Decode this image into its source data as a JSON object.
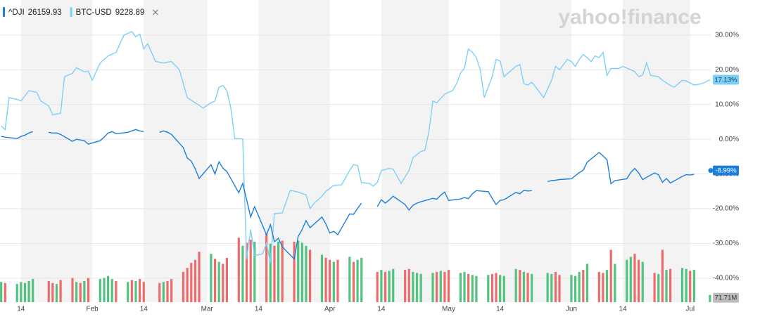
{
  "chart_data": {
    "type": "line",
    "logo": "yahoo!finance",
    "xlim": [
      8.7,
      188.2
    ],
    "ylim": [
      -46.9,
      40.1
    ],
    "grid": true,
    "xticks": [
      14,
      {
        "value": 32,
        "label": "Feb"
      },
      {
        "value": 45,
        "label": "14"
      },
      {
        "value": 61,
        "label": "Mar"
      },
      {
        "value": 74,
        "label": "14"
      },
      {
        "value": 92,
        "label": "Apr"
      },
      {
        "value": 105,
        "label": "14"
      },
      {
        "value": 122,
        "label": "May"
      },
      {
        "value": 135,
        "label": "14"
      },
      {
        "value": 153,
        "label": "Jun"
      },
      {
        "value": 166,
        "label": "14"
      },
      {
        "value": 183,
        "label": "Jul"
      }
    ],
    "yticks": [
      {
        "value": 30,
        "label": "30.00%"
      },
      {
        "value": 20,
        "label": "20.00%"
      },
      {
        "value": 10,
        "label": "10.00%"
      },
      {
        "value": 0,
        "label": "0.00%"
      },
      {
        "value": -10,
        "label": "-10.00%"
      },
      {
        "value": -20,
        "label": "-20.00%"
      },
      {
        "value": -30,
        "label": "-30.00%"
      },
      {
        "value": -40,
        "label": "-40.00%"
      }
    ],
    "series": [
      {
        "name": "^DJI",
        "price": 26159.93,
        "color": "#1c7fdc",
        "last_label": "-8.99%",
        "x": [
          9,
          10,
          13,
          14,
          15,
          16,
          17,
          20,
          21,
          22,
          23,
          24,
          27,
          28,
          29,
          30,
          31,
          34,
          35,
          36,
          37,
          38,
          41,
          42,
          43,
          44,
          45,
          48,
          49,
          50,
          51,
          52,
          55,
          56,
          57,
          58,
          59,
          62,
          63,
          64,
          65,
          66,
          69,
          70,
          71,
          72,
          73,
          76,
          77,
          78,
          79,
          80,
          83,
          84,
          85,
          86,
          87,
          90,
          91,
          92,
          93,
          94,
          97,
          98,
          99,
          100,
          101,
          104,
          105,
          106,
          107,
          108,
          111,
          112,
          113,
          114,
          115,
          118,
          119,
          120,
          121,
          122,
          125,
          126,
          127,
          128,
          129,
          132,
          133,
          134,
          135,
          136,
          139,
          140,
          141,
          142,
          143,
          146,
          147,
          148,
          149,
          150,
          153,
          154,
          155,
          156,
          157,
          160,
          161,
          162,
          163,
          164,
          167,
          168,
          169,
          170,
          171,
          174,
          175,
          176,
          177,
          178,
          181,
          182,
          183,
          184,
          185,
          188
        ],
        "values": [
          0.8,
          0.6,
          0.2,
          0.8,
          1.2,
          1.8,
          2.2,
          null,
          2.0,
          1.8,
          1.8,
          1.4,
          -0.6,
          0,
          -0.2,
          -0.4,
          -1.4,
          -0.4,
          0.6,
          1.8,
          2.2,
          1.6,
          2.0,
          2.4,
          2.8,
          2.4,
          2.2,
          null,
          2.0,
          2.4,
          2.0,
          1.4,
          -2.4,
          -5.4,
          -6.3,
          -8.5,
          -11.3,
          -7.3,
          -10,
          -6.5,
          -8.3,
          -9.3,
          -15.4,
          -12.7,
          -17.4,
          -22.4,
          -19.4,
          -27.5,
          -24.6,
          -29.5,
          -28.5,
          -31,
          -34.5,
          -28,
          -26,
          -23.4,
          -25.5,
          -22.4,
          -24.4,
          -27,
          -26.5,
          -27.5,
          -21.5,
          -21.6,
          -19.9,
          -18.4,
          null,
          -19.4,
          -17.4,
          -18.4,
          -17.5,
          -16.4,
          -18.8,
          -20.4,
          -19,
          -18.4,
          -18,
          -17,
          -17.3,
          -16.1,
          -15.2,
          -17.6,
          -17.2,
          -16.8,
          -17.1,
          -15.7,
          -14.8,
          -15.1,
          -17,
          -18.8,
          -17.6,
          -17.4,
          -15.3,
          -15.7,
          -14.7,
          -14.9,
          -14.8,
          null,
          -12.2,
          -11.9,
          -11.8,
          -11.6,
          -11.4,
          -10.5,
          -9.6,
          -8.9,
          -6.6,
          -3.8,
          -4.8,
          -5.9,
          -12.8,
          -11.9,
          -11.4,
          -9.6,
          -8.4,
          -9.7,
          -11.6,
          -9.7,
          -10.2,
          -12.4,
          -11.3,
          -12.6,
          -10.7,
          -10.2,
          -10.3,
          -10.1,
          null,
          -8.99
        ]
      },
      {
        "name": "BTC-USD",
        "price": 9228.89,
        "color": "#7dd0f5",
        "last_label": "17.13%",
        "x": [
          9,
          10,
          11,
          13,
          14,
          16,
          18,
          19,
          21,
          22,
          24,
          25,
          27,
          28,
          30,
          31,
          32,
          34,
          36,
          38,
          40,
          42,
          43,
          44,
          45,
          46,
          48,
          50,
          52,
          54,
          55,
          56,
          58,
          60,
          62,
          63,
          64,
          65,
          66,
          67,
          68,
          70,
          71,
          72,
          73,
          75,
          76,
          77,
          78,
          80,
          82,
          84,
          86,
          87,
          88,
          90,
          91,
          93,
          95,
          97,
          98,
          99,
          100,
          102,
          103,
          104,
          105,
          107,
          108,
          110,
          112,
          113,
          115,
          116,
          117,
          118,
          119,
          121,
          123,
          124,
          125,
          126,
          127,
          128,
          129,
          130,
          131,
          133,
          134,
          135,
          136,
          137,
          139,
          140,
          141,
          142,
          143,
          144,
          146,
          148,
          149,
          150,
          152,
          153,
          154,
          155,
          156,
          157,
          158,
          159,
          160,
          161,
          162,
          163,
          165,
          166,
          168,
          169,
          170,
          171,
          172,
          173,
          175,
          176,
          178,
          179,
          181,
          182,
          184,
          186,
          188
        ],
        "values": [
          3.8,
          2.8,
          12,
          11.5,
          11,
          14,
          13.5,
          11,
          9.6,
          7,
          7.5,
          18,
          19,
          20.6,
          19.4,
          19.6,
          17,
          22,
          24,
          25,
          30,
          31,
          29.5,
          30.3,
          26,
          27.5,
          22.4,
          22,
          22.4,
          20,
          16,
          12,
          10.5,
          9,
          10.5,
          11,
          15,
          15.5,
          14,
          9,
          0.2,
          0.1,
          -34.5,
          -26,
          -33.5,
          -33,
          -30,
          -35.5,
          -21.4,
          -21.2,
          -14.7,
          -15.2,
          -16,
          -20,
          -18.5,
          -16.4,
          -15,
          -13.3,
          -13.1,
          -9,
          -7.3,
          -7.5,
          -12.5,
          -12.7,
          -13.5,
          -12.4,
          -9,
          -8.4,
          -8.6,
          -12.7,
          -9,
          -5.3,
          -3.5,
          -3.2,
          2,
          11,
          10.5,
          13,
          14,
          16,
          19,
          20.5,
          26,
          25,
          23.5,
          20,
          12,
          18,
          23,
          22.5,
          18,
          19,
          21,
          21.5,
          16,
          15.6,
          16.4,
          15,
          12,
          17,
          21,
          20,
          23,
          22.4,
          21,
          23,
          24.4,
          23.5,
          22.4,
          24,
          23.5,
          25,
          18.4,
          20.4,
          20.4,
          21,
          20,
          19.5,
          18,
          18.5,
          22,
          18.4,
          18,
          17,
          15.5,
          15,
          17,
          16.8,
          15.6,
          16,
          17.13
        ]
      }
    ],
    "volume": {
      "vlim": [
        0,
        3000
      ],
      "last_label": "71.71M",
      "x": [
        9,
        10,
        13,
        14,
        15,
        16,
        17,
        21,
        22,
        23,
        24,
        27,
        28,
        29,
        30,
        31,
        34,
        35,
        36,
        37,
        38,
        41,
        42,
        43,
        44,
        45,
        49,
        50,
        51,
        52,
        55,
        56,
        57,
        58,
        59,
        62,
        63,
        64,
        65,
        66,
        69,
        70,
        71,
        72,
        73,
        76,
        77,
        78,
        79,
        80,
        83,
        84,
        85,
        86,
        87,
        90,
        91,
        92,
        93,
        94,
        97,
        98,
        99,
        100,
        104,
        105,
        106,
        107,
        108,
        111,
        112,
        113,
        114,
        115,
        118,
        119,
        120,
        121,
        122,
        125,
        126,
        127,
        128,
        129,
        132,
        133,
        134,
        135,
        136,
        139,
        140,
        141,
        142,
        143,
        147,
        148,
        149,
        150,
        153,
        154,
        155,
        156,
        157,
        160,
        161,
        162,
        163,
        164,
        167,
        168,
        169,
        170,
        171,
        174,
        175,
        176,
        177,
        178,
        181,
        182,
        183,
        184,
        188
      ],
      "values": [
        200,
        190,
        180,
        200,
        190,
        210,
        230,
        210,
        190,
        180,
        220,
        240,
        200,
        190,
        210,
        240,
        230,
        240,
        260,
        230,
        210,
        200,
        220,
        210,
        230,
        200,
        190,
        200,
        210,
        230,
        300,
        340,
        390,
        420,
        500,
        480,
        430,
        400,
        380,
        440,
        640,
        560,
        590,
        620,
        600,
        680,
        580,
        560,
        600,
        610,
        600,
        610,
        590,
        560,
        520,
        470,
        440,
        420,
        400,
        420,
        450,
        400,
        420,
        440,
        300,
        320,
        300,
        310,
        330,
        320,
        330,
        300,
        290,
        280,
        290,
        300,
        310,
        300,
        320,
        290,
        300,
        280,
        270,
        260,
        270,
        280,
        290,
        270,
        260,
        330,
        320,
        300,
        290,
        280,
        290,
        280,
        300,
        270,
        270,
        260,
        300,
        320,
        380,
        300,
        290,
        320,
        520,
        380,
        420,
        450,
        480,
        420,
        400,
        290,
        280,
        520,
        320,
        330,
        340,
        330,
        310,
        320,
        71.71
      ],
      "colors": [
        "#52c27f",
        "#ef6b6b",
        "#52c27f",
        "#52c27f",
        "#52c27f",
        "#52c27f",
        "#52c27f",
        "#ef6b6b",
        "#ef6b6b",
        "#52c27f",
        "#ef6b6b",
        "#ef6b6b",
        "#52c27f",
        "#ef6b6b",
        "#52c27f",
        "#ef6b6b",
        "#52c27f",
        "#52c27f",
        "#52c27f",
        "#52c27f",
        "#ef6b6b",
        "#52c27f",
        "#ef6b6b",
        "#52c27f",
        "#ef6b6b",
        "#ef6b6b",
        "#ef6b6b",
        "#52c27f",
        "#ef6b6b",
        "#ef6b6b",
        "#ef6b6b",
        "#ef6b6b",
        "#ef6b6b",
        "#ef6b6b",
        "#ef6b6b",
        "#52c27f",
        "#ef6b6b",
        "#52c27f",
        "#ef6b6b",
        "#ef6b6b",
        "#ef6b6b",
        "#52c27f",
        "#ef6b6b",
        "#ef6b6b",
        "#52c27f",
        "#ef6b6b",
        "#52c27f",
        "#ef6b6b",
        "#52c27f",
        "#ef6b6b",
        "#ef6b6b",
        "#52c27f",
        "#52c27f",
        "#52c27f",
        "#ef6b6b",
        "#52c27f",
        "#ef6b6b",
        "#ef6b6b",
        "#52c27f",
        "#ef6b6b",
        "#52c27f",
        "#ef6b6b",
        "#52c27f",
        "#52c27f",
        "#ef6b6b",
        "#52c27f",
        "#ef6b6b",
        "#52c27f",
        "#52c27f",
        "#ef6b6b",
        "#ef6b6b",
        "#52c27f",
        "#52c27f",
        "#52c27f",
        "#52c27f",
        "#ef6b6b",
        "#52c27f",
        "#ef6b6b",
        "#ef6b6b",
        "#52c27f",
        "#52c27f",
        "#ef6b6b",
        "#52c27f",
        "#52c27f",
        "#52c27f",
        "#ef6b6b",
        "#ef6b6b",
        "#52c27f",
        "#52c27f",
        "#52c27f",
        "#ef6b6b",
        "#52c27f",
        "#ef6b6b",
        "#52c27f",
        "#52c27f",
        "#52c27f",
        "#ef6b6b",
        "#ef6b6b",
        "#52c27f",
        "#52c27f",
        "#52c27f",
        "#ef6b6b",
        "#52c27f",
        "#ef6b6b",
        "#ef6b6b",
        "#52c27f",
        "#ef6b6b",
        "#52c27f",
        "#52c27f",
        "#52c27f",
        "#ef6b6b",
        "#ef6b6b",
        "#52c27f",
        "#ef6b6b",
        "#52c27f",
        "#ef6b6b",
        "#52c27f",
        "#ef6b6b",
        "#52c27f",
        "#52c27f",
        "#ef6b6b",
        "#52c27f",
        "#52c27f"
      ]
    }
  }
}
